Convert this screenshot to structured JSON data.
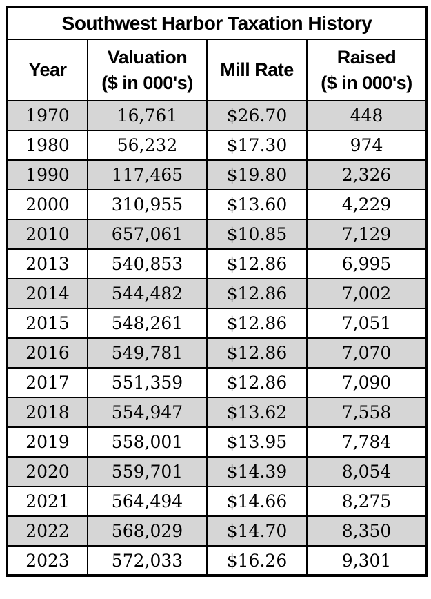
{
  "table": {
    "title": "Southwest Harbor Taxation History",
    "columns": [
      {
        "label": "Year",
        "sublabel": ""
      },
      {
        "label": "Valuation",
        "sublabel": "($ in 000's)"
      },
      {
        "label": "Mill Rate",
        "sublabel": ""
      },
      {
        "label": "Raised",
        "sublabel": "($ in 000's)"
      }
    ]
  },
  "colors": {
    "shaded_row": "#d6d6d6",
    "plain_row": "#ffffff",
    "border": "#000000",
    "text": "#000000"
  },
  "chart_data": {
    "type": "table",
    "title": "Southwest Harbor Taxation History",
    "columns": [
      "Year",
      "Valuation ($ in 000's)",
      "Mill Rate",
      "Raised ($ in 000's)"
    ],
    "rows": [
      [
        "1970",
        "16,761",
        "$26.70",
        "448"
      ],
      [
        "1980",
        "56,232",
        "$17.30",
        "974"
      ],
      [
        "1990",
        "117,465",
        "$19.80",
        "2,326"
      ],
      [
        "2000",
        "310,955",
        "$13.60",
        "4,229"
      ],
      [
        "2010",
        "657,061",
        "$10.85",
        "7,129"
      ],
      [
        "2013",
        "540,853",
        "$12.86",
        "6,995"
      ],
      [
        "2014",
        "544,482",
        "$12.86",
        "7,002"
      ],
      [
        "2015",
        "548,261",
        "$12.86",
        "7,051"
      ],
      [
        "2016",
        "549,781",
        "$12.86",
        "7,070"
      ],
      [
        "2017",
        "551,359",
        "$12.86",
        "7,090"
      ],
      [
        "2018",
        "554,947",
        "$13.62",
        "7,558"
      ],
      [
        "2019",
        "558,001",
        "$13.95",
        "7,784"
      ],
      [
        "2020",
        "559,701",
        "$14.39",
        "8,054"
      ],
      [
        "2021",
        "564,494",
        "$14.66",
        "8,275"
      ],
      [
        "2022",
        "568,029",
        "$14.70",
        "8,350"
      ],
      [
        "2023",
        "572,033",
        "$16.26",
        "9,301"
      ]
    ],
    "layout": {
      "shading": "alternating rows, first data row shaded gray",
      "alignment": "all cells centered",
      "header_rows": 2
    }
  }
}
